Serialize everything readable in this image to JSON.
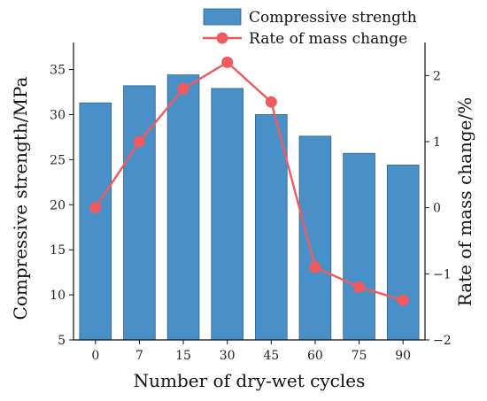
{
  "chart_data": {
    "type": "bar",
    "categories": [
      "0",
      "7",
      "15",
      "30",
      "45",
      "60",
      "75",
      "90"
    ],
    "series": [
      {
        "name": "Compressive strength",
        "type": "bar",
        "axis": "left",
        "color": "#4a90c8",
        "values": [
          31.3,
          33.2,
          34.4,
          32.9,
          30.0,
          27.6,
          25.7,
          24.4
        ]
      },
      {
        "name": "Rate of mass change",
        "type": "line",
        "axis": "right",
        "color": "#f05a5f",
        "values": [
          0.0,
          1.0,
          1.8,
          2.2,
          1.6,
          -0.9,
          -1.2,
          -1.4
        ]
      }
    ],
    "xlabel": "Number of dry-wet cycles",
    "ylabel": "Compressive strength/MPa",
    "y2label": "Rate of mass change/%",
    "ylim": [
      5,
      38
    ],
    "y2lim": [
      -2,
      2.5
    ],
    "yticks": [
      "5",
      "10",
      "15",
      "20",
      "25",
      "30",
      "35"
    ],
    "y2ticks": [
      "−2",
      "−1",
      "0",
      "1",
      "2"
    ],
    "legend_position": "top-center",
    "grid": false
  }
}
